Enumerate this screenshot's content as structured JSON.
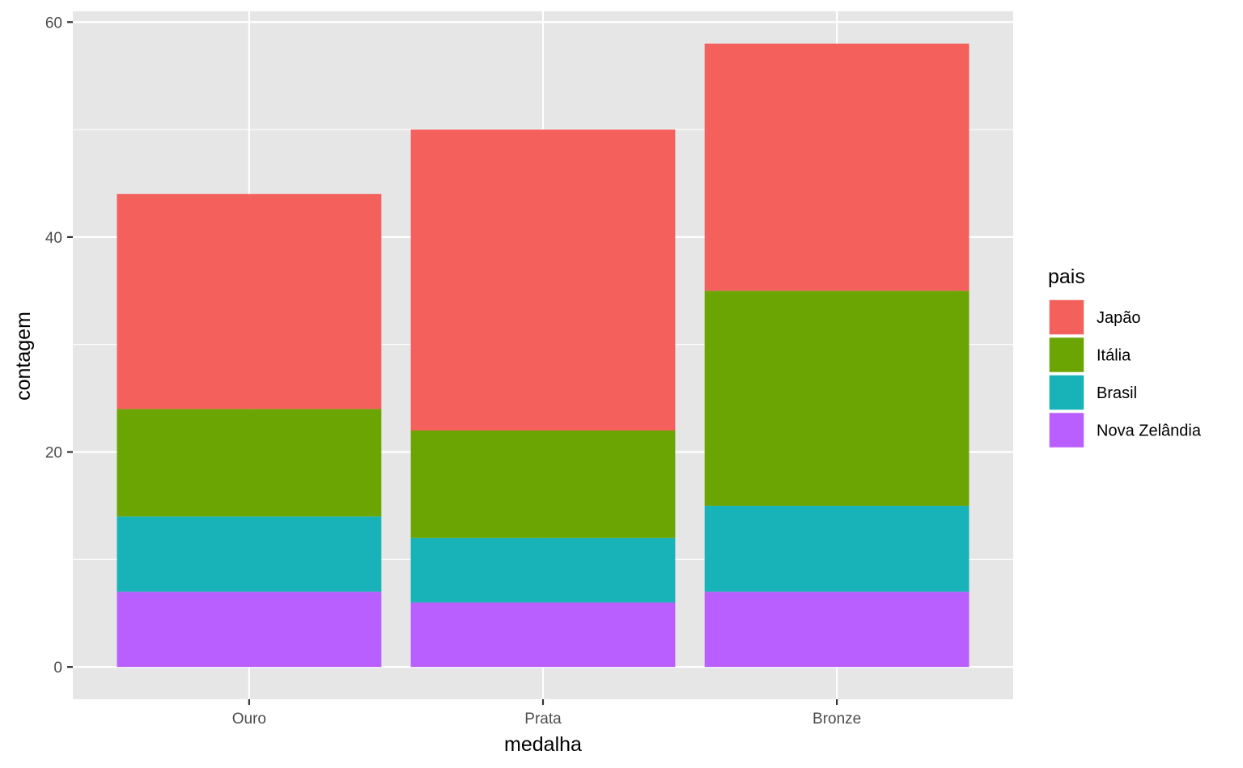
{
  "chart_data": {
    "type": "bar",
    "stacked": true,
    "xlabel": "medalha",
    "ylabel": "contagem",
    "categories": [
      "Ouro",
      "Prata",
      "Bronze"
    ],
    "ylim": [
      -3,
      61
    ],
    "yticks": [
      0,
      20,
      40,
      60
    ],
    "y_minor_gridlines": [
      10,
      30,
      50
    ],
    "grid": true,
    "legend": {
      "title": "pais",
      "position": "right"
    },
    "series": [
      {
        "name": "Nova Zelândia",
        "color": "#B95FFF",
        "values": [
          7,
          6,
          7
        ]
      },
      {
        "name": "Brasil",
        "color": "#18B3B8",
        "values": [
          7,
          6,
          8
        ]
      },
      {
        "name": "Itália",
        "color": "#6BA503",
        "values": [
          10,
          10,
          20
        ]
      },
      {
        "name": "Japão",
        "color": "#F4605B",
        "values": [
          20,
          28,
          23
        ]
      }
    ],
    "legend_order": [
      "Japão",
      "Itália",
      "Brasil",
      "Nova Zelândia"
    ],
    "panel_background": "#E6E6E6",
    "grid_color": "#FFFFFF"
  }
}
